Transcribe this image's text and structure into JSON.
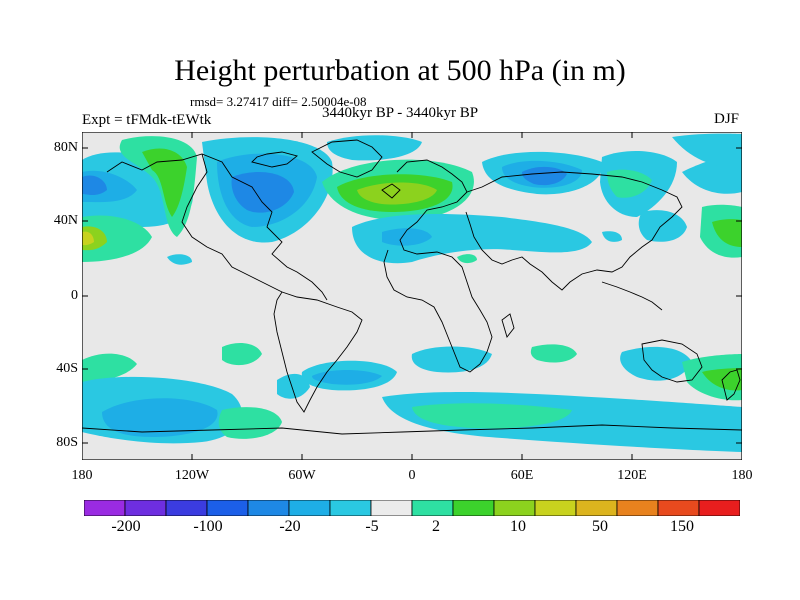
{
  "title": "Height perturbation at 500 hPa (in m)",
  "stats": "rmsd= 3.27417 diff= 2.50004e-08",
  "experiment": "Expt = tFMdk-tEWtk",
  "period": "3440kyr BP - 3440kyr BP",
  "season": "DJF",
  "map": {
    "lat_ticks": [
      "80N",
      "40N",
      "0",
      "40S",
      "80S"
    ],
    "lon_ticks": [
      "180",
      "120W",
      "60W",
      "0",
      "60E",
      "120E",
      "180"
    ],
    "background_color": "#e8e8e8"
  },
  "colorbar": {
    "colors": [
      "#9a2be2",
      "#6e2ee0",
      "#3b3ce0",
      "#1c5fe8",
      "#1e88e5",
      "#1eaee6",
      "#2ac8e2",
      "#ececec",
      "#2ee0a2",
      "#3cd22c",
      "#8cd21e",
      "#c8d21e",
      "#dcb41e",
      "#e8821e",
      "#e84a1e",
      "#e81e1e"
    ],
    "tick_labels": [
      "-200",
      "-100",
      "-20",
      "-5",
      "2",
      "10",
      "50",
      "150"
    ]
  }
}
